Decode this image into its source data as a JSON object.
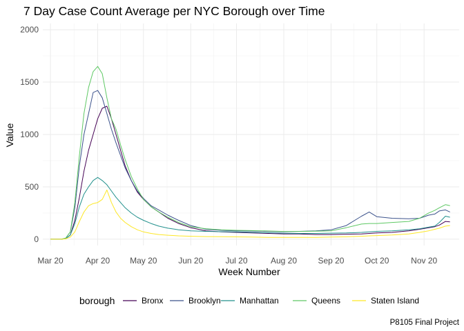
{
  "chart_data": {
    "type": "line",
    "title": "7 Day Case Count Average per NYC Borough over Time",
    "xlabel": "Week Number",
    "ylabel": "Value",
    "caption": "P8105 Final Project",
    "legend_title": "borough",
    "legend_position": "bottom",
    "grid": true,
    "ylim": [
      -60,
      2060
    ],
    "yticks": [
      0,
      500,
      1000,
      1500,
      2000
    ],
    "x_axis_type": "date",
    "xlim": [
      "2020-03-10",
      "2020-12-08"
    ],
    "xticks": [
      {
        "date": "2020-03-15",
        "label": "Mar 20"
      },
      {
        "date": "2020-04-15",
        "label": "Apr 20"
      },
      {
        "date": "2020-05-15",
        "label": "May 20"
      },
      {
        "date": "2020-06-15",
        "label": "Jun 20"
      },
      {
        "date": "2020-07-15",
        "label": "Jul 20"
      },
      {
        "date": "2020-08-15",
        "label": "Aug 20"
      },
      {
        "date": "2020-09-15",
        "label": "Sep 20"
      },
      {
        "date": "2020-10-15",
        "label": "Oct 20"
      },
      {
        "date": "2020-11-15",
        "label": "Nov 20"
      }
    ],
    "x": [
      "2020-03-15",
      "2020-03-22",
      "2020-03-25",
      "2020-03-28",
      "2020-03-31",
      "2020-04-03",
      "2020-04-06",
      "2020-04-09",
      "2020-04-12",
      "2020-04-15",
      "2020-04-18",
      "2020-04-21",
      "2020-04-24",
      "2020-04-27",
      "2020-04-30",
      "2020-05-03",
      "2020-05-07",
      "2020-05-11",
      "2020-05-15",
      "2020-05-20",
      "2020-05-25",
      "2020-05-31",
      "2020-06-07",
      "2020-06-15",
      "2020-06-25",
      "2020-07-05",
      "2020-07-15",
      "2020-07-25",
      "2020-08-05",
      "2020-08-15",
      "2020-08-25",
      "2020-09-05",
      "2020-09-15",
      "2020-09-25",
      "2020-10-05",
      "2020-10-10",
      "2020-10-15",
      "2020-10-25",
      "2020-11-05",
      "2020-11-12",
      "2020-11-18",
      "2020-11-22",
      "2020-11-25",
      "2020-11-29",
      "2020-12-02"
    ],
    "series": [
      {
        "name": "Bronx",
        "color": "#440154",
        "values": [
          0,
          0,
          5,
          40,
          180,
          400,
          650,
          850,
          1000,
          1150,
          1250,
          1270,
          1150,
          1000,
          850,
          700,
          560,
          450,
          380,
          310,
          260,
          200,
          150,
          110,
          80,
          70,
          65,
          60,
          55,
          50,
          50,
          45,
          45,
          48,
          50,
          55,
          60,
          65,
          80,
          95,
          110,
          120,
          135,
          170,
          165
        ]
      },
      {
        "name": "Brooklyn",
        "color": "#3b528b",
        "values": [
          0,
          0,
          10,
          70,
          300,
          700,
          1000,
          1200,
          1400,
          1420,
          1350,
          1200,
          1050,
          920,
          800,
          680,
          560,
          460,
          390,
          320,
          280,
          230,
          180,
          130,
          95,
          85,
          80,
          78,
          75,
          72,
          75,
          80,
          90,
          130,
          220,
          260,
          215,
          200,
          195,
          200,
          230,
          240,
          270,
          280,
          260
        ]
      },
      {
        "name": "Manhattan",
        "color": "#21908c",
        "values": [
          0,
          0,
          5,
          40,
          150,
          310,
          430,
          500,
          560,
          590,
          560,
          520,
          460,
          400,
          350,
          300,
          250,
          210,
          180,
          150,
          125,
          105,
          90,
          80,
          75,
          72,
          70,
          66,
          62,
          58,
          55,
          55,
          58,
          60,
          65,
          70,
          75,
          80,
          90,
          100,
          115,
          125,
          160,
          220,
          210
        ]
      },
      {
        "name": "Queens",
        "color": "#5dc863",
        "values": [
          0,
          0,
          10,
          70,
          350,
          800,
          1200,
          1450,
          1600,
          1650,
          1580,
          1350,
          1150,
          1050,
          900,
          760,
          600,
          480,
          380,
          310,
          260,
          210,
          160,
          120,
          100,
          90,
          85,
          82,
          78,
          74,
          74,
          76,
          80,
          110,
          145,
          150,
          150,
          160,
          170,
          200,
          250,
          275,
          300,
          330,
          320
        ]
      },
      {
        "name": "Staten Island",
        "color": "#fde725",
        "values": [
          0,
          0,
          3,
          20,
          70,
          170,
          260,
          320,
          340,
          350,
          380,
          470,
          350,
          260,
          200,
          160,
          120,
          90,
          70,
          55,
          45,
          38,
          32,
          28,
          25,
          24,
          22,
          20,
          18,
          17,
          17,
          18,
          20,
          23,
          28,
          32,
          35,
          40,
          50,
          65,
          80,
          95,
          105,
          125,
          130
        ]
      }
    ]
  }
}
